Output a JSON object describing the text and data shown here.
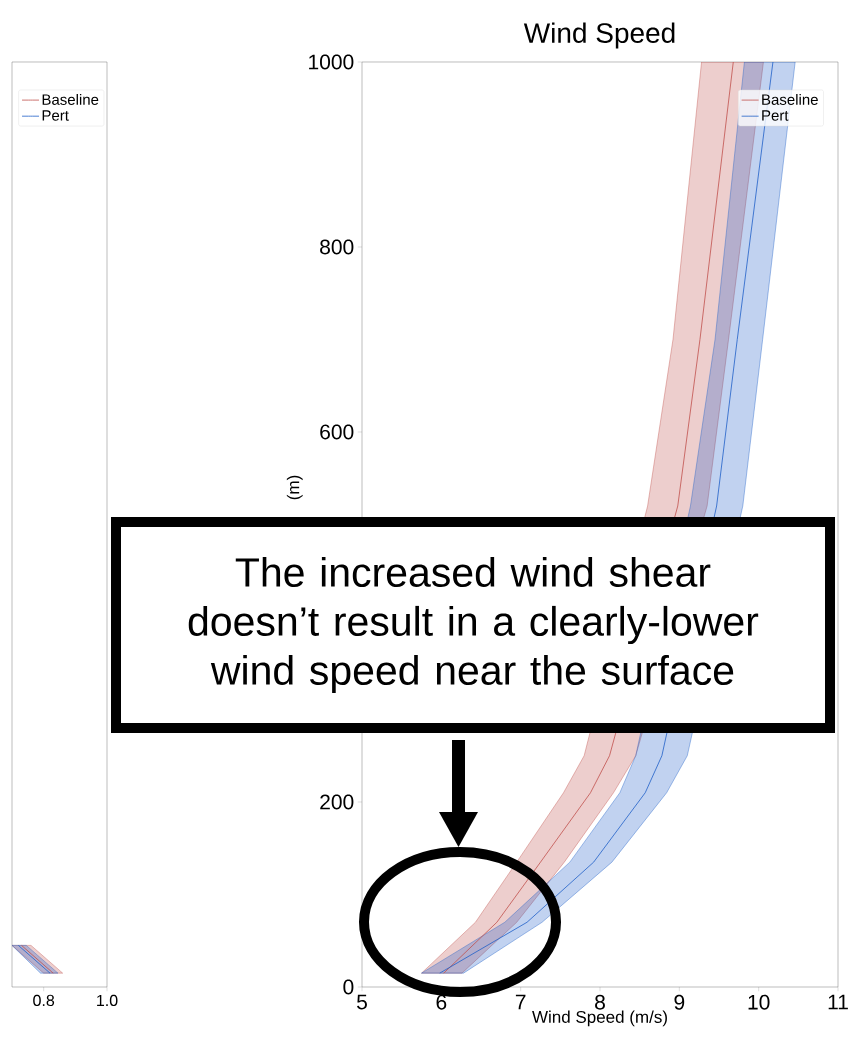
{
  "chart_data": [
    {
      "type": "line",
      "orientation": "horizontal",
      "xlim": [
        0.7,
        1.0
      ],
      "ylim": [
        0,
        1000
      ],
      "xticks": [
        0.8,
        {
          "value": 1,
          "label": "1.0"
        }
      ],
      "tick_labels": "x",
      "legend": "top right",
      "series": [
        {
          "name": "Baseline",
          "color": "#c0504d",
          "x": [
            15,
            45
          ],
          "values": [
            0.83,
            0.73
          ],
          "lower": [
            0.8,
            0.7
          ],
          "upper": [
            0.86,
            0.76
          ]
        },
        {
          "name": "Pert",
          "color": "#1f5fc8",
          "x": [
            15,
            45
          ],
          "values": [
            0.82,
            0.72
          ],
          "lower": [
            0.79,
            0.7
          ],
          "upper": [
            0.845,
            0.745
          ]
        }
      ]
    },
    {
      "type": "line",
      "orientation": "horizontal",
      "title": "Wind Speed",
      "xlabel": "Wind Speed (m/s)",
      "ylabel": "(m)",
      "xlim": [
        5,
        11
      ],
      "ylim": [
        0,
        1000
      ],
      "xticks": [
        5,
        6,
        7,
        8,
        9,
        10,
        11
      ],
      "yticks": [
        0,
        200,
        600,
        800,
        1000
      ],
      "legend": "top right",
      "annotations": [
        "The increased wind shear doesn’t result in a clearly-lower wind speed near the surface"
      ],
      "series": [
        {
          "name": "Baseline",
          "color": "#c0504d",
          "x": [
            15,
            70,
            135,
            210,
            250,
            520,
            700,
            1000
          ],
          "values": [
            6.03,
            6.7,
            7.25,
            7.88,
            8.12,
            8.98,
            9.26,
            9.68
          ],
          "lower": [
            5.75,
            6.43,
            6.95,
            7.54,
            7.8,
            8.6,
            8.92,
            9.28
          ],
          "upper": [
            6.26,
            6.95,
            7.55,
            8.17,
            8.45,
            9.35,
            9.62,
            10.06
          ]
        },
        {
          "name": "Pert",
          "color": "#1f5fc8",
          "x": [
            15,
            70,
            135,
            210,
            250,
            520,
            700,
            1000
          ],
          "values": [
            5.98,
            7.08,
            7.92,
            8.57,
            8.78,
            9.47,
            9.73,
            10.18
          ],
          "lower": [
            5.75,
            6.8,
            7.62,
            8.25,
            8.45,
            9.14,
            9.45,
            9.82
          ],
          "upper": [
            6.28,
            7.27,
            8.15,
            8.84,
            9.1,
            9.8,
            10.05,
            10.46
          ]
        }
      ]
    }
  ]
}
